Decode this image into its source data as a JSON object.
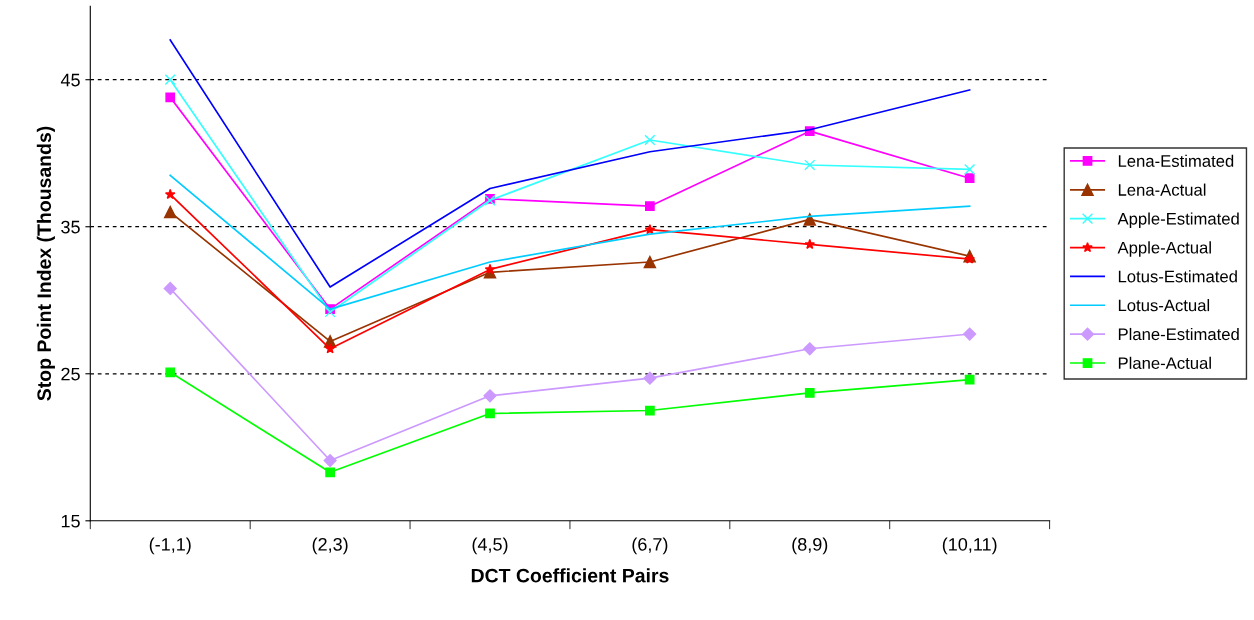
{
  "chart_data": {
    "type": "line",
    "xlabel": "DCT Coefficient Pairs",
    "ylabel": "Stop Point Index (Thousands)",
    "categories": [
      "(-1,1)",
      "(2,3)",
      "(4,5)",
      "(6,7)",
      "(8,9)",
      "(10,11)"
    ],
    "ylim": [
      15,
      50
    ],
    "yticks": [
      15,
      25,
      35,
      45
    ],
    "grid": "y",
    "legend": "right",
    "series": [
      {
        "name": "Lena-Estimated",
        "color": "#ff00ff",
        "marker": "square",
        "values": [
          43.8,
          29.4,
          36.9,
          36.4,
          41.5,
          38.3
        ]
      },
      {
        "name": "Lena-Actual",
        "color": "#993300",
        "marker": "triangle",
        "values": [
          36.0,
          27.2,
          31.9,
          32.6,
          35.5,
          33.0
        ]
      },
      {
        "name": "Apple-Estimated",
        "color": "#33ffff",
        "marker": "cross",
        "values": [
          45.0,
          29.2,
          36.8,
          40.9,
          39.2,
          38.9
        ]
      },
      {
        "name": "Apple-Actual",
        "color": "#ff0000",
        "marker": "star",
        "values": [
          37.2,
          26.7,
          32.1,
          34.8,
          33.8,
          32.8
        ]
      },
      {
        "name": "Lotus-Estimated",
        "color": "#0000ff",
        "marker": "none",
        "values": [
          47.7,
          30.9,
          37.6,
          40.1,
          41.6,
          44.3
        ]
      },
      {
        "name": "Lotus-Actual",
        "color": "#00ccff",
        "marker": "none",
        "values": [
          38.5,
          29.4,
          32.6,
          34.5,
          35.7,
          36.4
        ]
      },
      {
        "name": "Plane-Estimated",
        "color": "#cc99ff",
        "marker": "diamond",
        "values": [
          30.8,
          19.1,
          23.5,
          24.7,
          26.7,
          27.7
        ]
      },
      {
        "name": "Plane-Actual",
        "color": "#00ff00",
        "marker": "square",
        "values": [
          25.1,
          18.3,
          22.3,
          22.5,
          23.7,
          24.6
        ]
      }
    ]
  }
}
